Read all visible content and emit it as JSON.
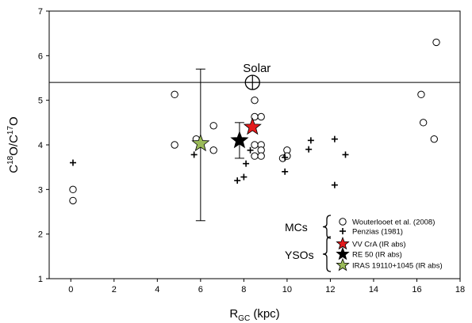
{
  "chart_data": {
    "type": "scatter",
    "xlabel_main": "R",
    "xlabel_sub": "GC",
    "xlabel_unit": " (kpc)",
    "ylabel": "C18O/C17O",
    "xlim": [
      -1,
      18
    ],
    "ylim": [
      1,
      7
    ],
    "xticks": [
      0,
      2,
      4,
      6,
      8,
      10,
      12,
      14,
      16,
      18
    ],
    "yticks": [
      1,
      2,
      3,
      4,
      5,
      6,
      7
    ],
    "grid": false,
    "solar": {
      "label": "Solar",
      "y": 5.4,
      "x": 8.4
    },
    "series": [
      {
        "name": "Wouterlooet et al. (2008)",
        "legend_text": "Wouterlooet et al. (2008)",
        "marker": "open-circle",
        "group": "MCs",
        "points": [
          [
            0.1,
            3.0
          ],
          [
            0.1,
            2.75
          ],
          [
            4.8,
            5.13
          ],
          [
            4.8,
            4.0
          ],
          [
            5.8,
            4.13
          ],
          [
            6.6,
            4.43
          ],
          [
            6.6,
            3.88
          ],
          [
            8.5,
            5.0
          ],
          [
            8.5,
            4.63
          ],
          [
            8.5,
            4.0
          ],
          [
            8.5,
            3.75
          ],
          [
            8.8,
            4.63
          ],
          [
            8.8,
            4.0
          ],
          [
            8.8,
            3.88
          ],
          [
            8.8,
            3.75
          ],
          [
            9.8,
            3.7
          ],
          [
            10.0,
            3.88
          ],
          [
            10.0,
            3.75
          ],
          [
            16.2,
            5.13
          ],
          [
            16.3,
            4.5
          ],
          [
            16.8,
            4.13
          ],
          [
            16.9,
            6.3
          ]
        ]
      },
      {
        "name": "Penzias (1981)",
        "legend_text": "Penzias (1981)",
        "marker": "plus",
        "group": "MCs",
        "points": [
          [
            0.1,
            3.6
          ],
          [
            5.7,
            3.78
          ],
          [
            7.7,
            3.2
          ],
          [
            8.0,
            3.28
          ],
          [
            8.1,
            3.58
          ],
          [
            8.3,
            3.88
          ],
          [
            9.9,
            3.4
          ],
          [
            9.9,
            3.72
          ],
          [
            11.0,
            3.9
          ],
          [
            11.1,
            4.1
          ],
          [
            12.2,
            4.13
          ],
          [
            12.2,
            3.1
          ],
          [
            12.7,
            3.78
          ]
        ]
      },
      {
        "name": "VV CrA (IR abs)",
        "legend_text": "VV CrA (IR abs)",
        "marker": "star",
        "color": "#e31a1c",
        "group": "YSOs",
        "points": [
          [
            8.4,
            4.4
          ]
        ]
      },
      {
        "name": "RE 50 (IR abs)",
        "legend_text": "RE 50 (IR abs)",
        "marker": "star",
        "color": "#000000",
        "group": "YSOs",
        "points": [
          [
            7.8,
            4.1
          ]
        ],
        "error": [
          3.7,
          4.5
        ]
      },
      {
        "name": "IRAS 19110+1045 (IR abs)",
        "legend_text": "IRAS 19110+1045 (IR abs)",
        "marker": "star",
        "color": "#9bbb59",
        "group": "YSOs",
        "points": [
          [
            6.0,
            4.03
          ]
        ],
        "error": [
          2.3,
          5.7
        ]
      }
    ],
    "groups": [
      "MCs",
      "YSOs"
    ]
  }
}
